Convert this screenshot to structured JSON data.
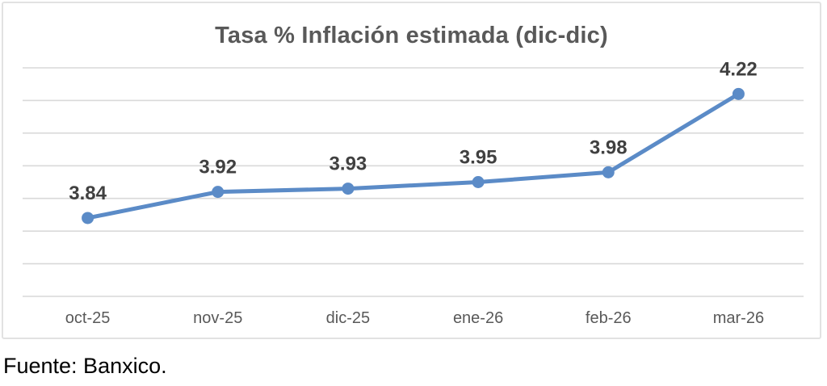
{
  "source_note": "Fuente: Banxico.",
  "chart_data": {
    "type": "line",
    "title": "Tasa % Inflación estimada (dic-dic)",
    "categories": [
      "oct-25",
      "nov-25",
      "dic-25",
      "ene-26",
      "feb-26",
      "mar-26"
    ],
    "series": [
      {
        "name": "Tasa % Inflación estimada (dic-dic)",
        "values": [
          3.84,
          3.92,
          3.93,
          3.95,
          3.98,
          4.22
        ],
        "labels": [
          "3.84",
          "3.92",
          "3.93",
          "3.95",
          "3.98",
          "4.22"
        ]
      }
    ],
    "xlabel": "",
    "ylabel": "",
    "ylim": [
      3.6,
      4.3
    ],
    "grid_step": 0.1,
    "grid": true,
    "y_axis_labels_visible": false,
    "legend_position": "none",
    "colors": {
      "line": "#5B8BC7",
      "marker": "#5B8BC7",
      "grid": "#D9D9D9",
      "title": "#595959",
      "data_label": "#404040",
      "tick_label": "#595959",
      "border": "#E2E2E2"
    }
  }
}
